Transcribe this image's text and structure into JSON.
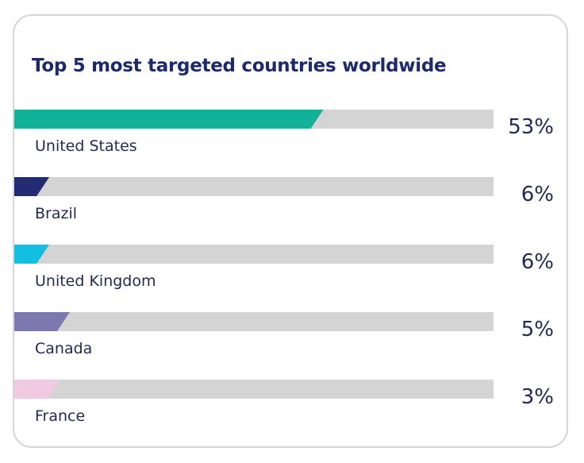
{
  "chart_data": {
    "type": "bar",
    "orientation": "horizontal",
    "title": "Top 5 most targeted countries worldwide",
    "categories": [
      "United States",
      "Brazil",
      "United Kingdom",
      "Canada",
      "France"
    ],
    "values": [
      53,
      6,
      6,
      5,
      3
    ],
    "value_labels": [
      "53%",
      "6%",
      "6%",
      "5%",
      "3%"
    ],
    "colors": [
      "#12b19a",
      "#232b73",
      "#13bfe0",
      "#7b79b0",
      "#f0c9e2"
    ],
    "track_color": "#d4d4d4",
    "label_color": "#232a52",
    "title_color": "#1c2a6b",
    "grid": false,
    "legend": "none"
  }
}
